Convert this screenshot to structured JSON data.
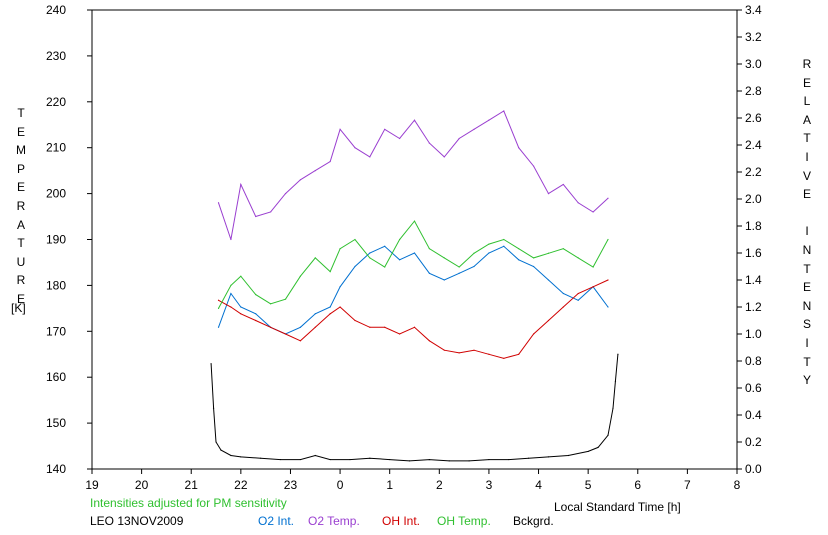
{
  "chart_data": {
    "type": "line",
    "x_ticks": [
      "19",
      "20",
      "21",
      "22",
      "23",
      "0",
      "1",
      "2",
      "3",
      "4",
      "5",
      "6",
      "7",
      "8"
    ],
    "xlabel": "Local Standard Time [h]",
    "y_left": {
      "label_letters": [
        "T",
        "E",
        "M",
        "P",
        "E",
        "R",
        "A",
        "T",
        "U",
        "R",
        "E"
      ],
      "unit": "[K]",
      "range": [
        140,
        240
      ],
      "ticks": [
        "140",
        "150",
        "160",
        "170",
        "180",
        "190",
        "200",
        "210",
        "220",
        "230",
        "240"
      ]
    },
    "y_right": {
      "label_letters": [
        "R",
        "E",
        "L",
        "A",
        "T",
        "I",
        "V",
        "E",
        "",
        "I",
        "N",
        "T",
        "E",
        "N",
        "S",
        "I",
        "T",
        "Y"
      ],
      "range": [
        0.0,
        3.4
      ],
      "ticks": [
        "0.0",
        "0.2",
        "0.4",
        "0.6",
        "0.8",
        "1.0",
        "1.2",
        "1.4",
        "1.6",
        "1.8",
        "2.0",
        "2.2",
        "2.4",
        "2.6",
        "2.8",
        "3.0",
        "3.2",
        "3.4"
      ]
    },
    "note": "Intensities adjusted for PM sensitivity",
    "station": "LEO 13NOV2009",
    "series": [
      {
        "name": "O2 Int.",
        "color": "#0070d0",
        "axis": "right",
        "x": [
          21.55,
          21.8,
          22.0,
          22.3,
          22.6,
          22.9,
          23.2,
          23.5,
          23.8,
          24.0,
          24.3,
          24.6,
          24.9,
          25.2,
          25.5,
          25.8,
          26.1,
          26.4,
          26.7,
          27.0,
          27.3,
          27.6,
          27.9,
          28.2,
          28.5,
          28.8,
          29.1,
          29.4
        ],
        "y": [
          1.05,
          1.3,
          1.2,
          1.15,
          1.05,
          1.0,
          1.05,
          1.15,
          1.2,
          1.35,
          1.5,
          1.6,
          1.65,
          1.55,
          1.6,
          1.45,
          1.4,
          1.45,
          1.5,
          1.6,
          1.65,
          1.55,
          1.5,
          1.4,
          1.3,
          1.25,
          1.35,
          1.2
        ]
      },
      {
        "name": "O2 Temp.",
        "color": "#9a3fd0",
        "axis": "left",
        "x": [
          21.55,
          21.8,
          22.0,
          22.3,
          22.6,
          22.9,
          23.2,
          23.5,
          23.8,
          24.0,
          24.3,
          24.6,
          24.9,
          25.2,
          25.5,
          25.8,
          26.1,
          26.4,
          26.7,
          27.0,
          27.3,
          27.6,
          27.9,
          28.2,
          28.5,
          28.8,
          29.1,
          29.4
        ],
        "y": [
          198,
          190,
          202,
          195,
          196,
          200,
          203,
          205,
          207,
          214,
          210,
          208,
          214,
          212,
          216,
          211,
          208,
          212,
          214,
          216,
          218,
          210,
          206,
          200,
          202,
          198,
          196,
          199
        ]
      },
      {
        "name": "OH Int.",
        "color": "#d00000",
        "axis": "right",
        "x": [
          21.55,
          21.8,
          22.0,
          22.3,
          22.6,
          22.9,
          23.2,
          23.5,
          23.8,
          24.0,
          24.3,
          24.6,
          24.9,
          25.2,
          25.5,
          25.8,
          26.1,
          26.4,
          26.7,
          27.0,
          27.3,
          27.6,
          27.9,
          28.2,
          28.5,
          28.8,
          29.1,
          29.4
        ],
        "y": [
          1.25,
          1.2,
          1.15,
          1.1,
          1.05,
          1.0,
          0.95,
          1.05,
          1.15,
          1.2,
          1.1,
          1.05,
          1.05,
          1.0,
          1.05,
          0.95,
          0.88,
          0.86,
          0.88,
          0.85,
          0.82,
          0.85,
          1.0,
          1.1,
          1.2,
          1.3,
          1.35,
          1.4
        ]
      },
      {
        "name": "OH Temp.",
        "color": "#30c030",
        "axis": "left",
        "x": [
          21.55,
          21.8,
          22.0,
          22.3,
          22.6,
          22.9,
          23.2,
          23.5,
          23.8,
          24.0,
          24.3,
          24.6,
          24.9,
          25.2,
          25.5,
          25.8,
          26.1,
          26.4,
          26.7,
          27.0,
          27.3,
          27.6,
          27.9,
          28.2,
          28.5,
          28.8,
          29.1,
          29.4
        ],
        "y": [
          175,
          180,
          182,
          178,
          176,
          177,
          182,
          186,
          183,
          188,
          190,
          186,
          184,
          190,
          194,
          188,
          186,
          184,
          187,
          189,
          190,
          188,
          186,
          187,
          188,
          186,
          184,
          190
        ]
      },
      {
        "name": "Bckgrd.",
        "color": "#000000",
        "axis": "right",
        "x": [
          21.4,
          21.45,
          21.5,
          21.6,
          21.8,
          22.0,
          22.4,
          22.8,
          23.2,
          23.5,
          23.8,
          24.2,
          24.6,
          25.0,
          25.4,
          25.8,
          26.2,
          26.6,
          27.0,
          27.4,
          27.8,
          28.2,
          28.6,
          29.0,
          29.2,
          29.4,
          29.5,
          29.55,
          29.6
        ],
        "y": [
          0.78,
          0.45,
          0.2,
          0.14,
          0.1,
          0.09,
          0.08,
          0.07,
          0.07,
          0.1,
          0.07,
          0.07,
          0.08,
          0.07,
          0.06,
          0.07,
          0.06,
          0.06,
          0.07,
          0.07,
          0.08,
          0.09,
          0.1,
          0.13,
          0.16,
          0.25,
          0.45,
          0.65,
          0.85
        ]
      }
    ],
    "colors": {
      "note": "#30c030",
      "text": "#000000"
    }
  }
}
